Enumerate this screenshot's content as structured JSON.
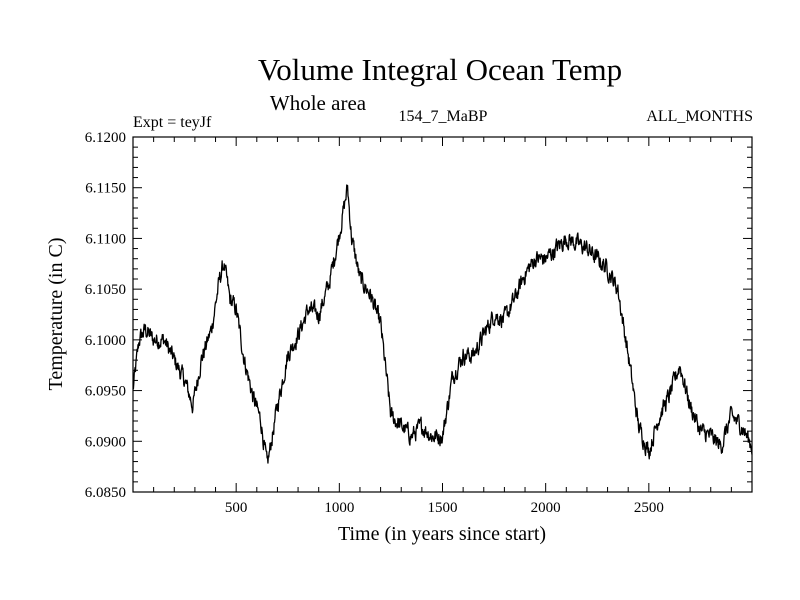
{
  "header": {
    "title": "Volume Integral Ocean Temp",
    "subtitle": "Whole area",
    "expt": "Expt = teyJf",
    "run": "154_7_MaBP",
    "months": "ALL_MONTHS"
  },
  "chart_data": {
    "type": "line",
    "title": "Volume Integral Ocean Temp",
    "subtitle": "Whole area",
    "xlabel": "Time (in years since start)",
    "ylabel": "Temperature (in C)",
    "xlim": [
      0,
      3000
    ],
    "ylim": [
      6.085,
      6.12
    ],
    "xticks": [
      500,
      1000,
      1500,
      2000,
      2500
    ],
    "xtick_labels": [
      "500",
      "1000",
      "1500",
      "2000",
      "2500"
    ],
    "yticks": [
      6.085,
      6.09,
      6.095,
      6.1,
      6.105,
      6.11,
      6.115,
      6.12
    ],
    "ytick_labels": [
      "6.0850",
      "6.0900",
      "6.0950",
      "6.1000",
      "6.1050",
      "6.1100",
      "6.1150",
      "6.1200"
    ],
    "grid": false,
    "series": [
      {
        "name": "Volume integral ocean temperature",
        "x": [
          0,
          30,
          60,
          100,
          150,
          200,
          250,
          290,
          330,
          380,
          420,
          440,
          470,
          500,
          540,
          580,
          620,
          650,
          700,
          750,
          800,
          850,
          900,
          950,
          1000,
          1040,
          1060,
          1100,
          1150,
          1200,
          1250,
          1300,
          1350,
          1400,
          1450,
          1500,
          1550,
          1600,
          1650,
          1700,
          1750,
          1800,
          1850,
          1900,
          1950,
          2000,
          2050,
          2100,
          2150,
          2200,
          2250,
          2300,
          2350,
          2400,
          2450,
          2500,
          2550,
          2600,
          2650,
          2700,
          2750,
          2800,
          2850,
          2900,
          2950,
          3000
        ],
        "values": [
          6.095,
          6.1,
          6.101,
          6.1,
          6.1,
          6.098,
          6.096,
          6.0935,
          6.098,
          6.101,
          6.106,
          6.1075,
          6.104,
          6.103,
          6.098,
          6.0945,
          6.092,
          6.0875,
          6.0935,
          6.0985,
          6.1005,
          6.103,
          6.1025,
          6.1055,
          6.1105,
          6.115,
          6.11,
          6.106,
          6.1045,
          6.1015,
          6.0925,
          6.0915,
          6.0905,
          6.0915,
          6.0905,
          6.0905,
          6.0965,
          6.0985,
          6.0985,
          6.1005,
          6.1025,
          6.102,
          6.104,
          6.1065,
          6.108,
          6.108,
          6.109,
          6.11,
          6.1095,
          6.109,
          6.108,
          6.107,
          6.105,
          6.0985,
          6.0915,
          6.089,
          6.0925,
          6.0945,
          6.0975,
          6.0935,
          6.091,
          6.0905,
          6.0895,
          6.0925,
          6.0915,
          6.0895
        ]
      }
    ]
  }
}
